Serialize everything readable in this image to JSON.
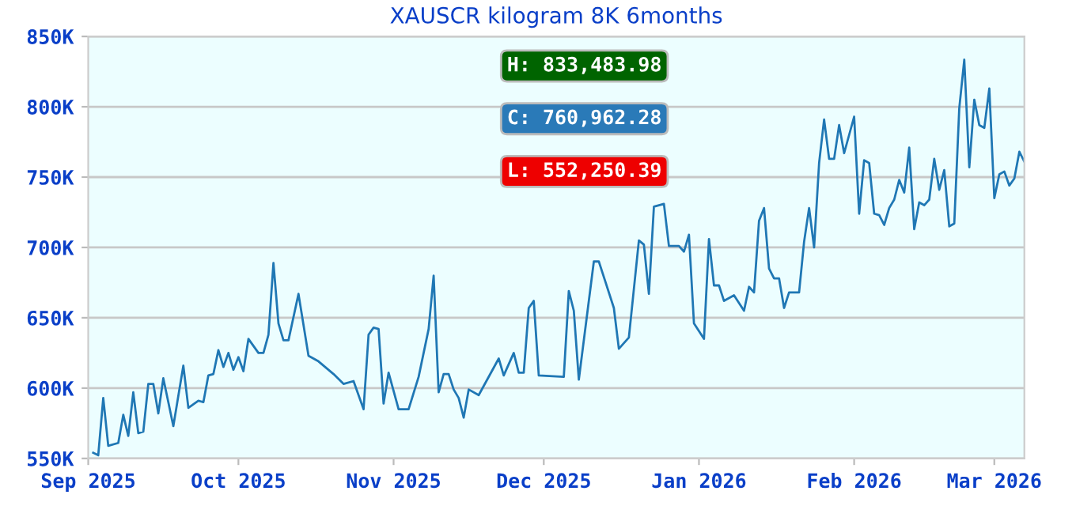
{
  "chart_data": {
    "type": "line",
    "title": "XAUSCR kilogram 8K 6months",
    "x": [
      "2025-09-02",
      "2025-09-03",
      "2025-09-04",
      "2025-09-05",
      "2025-09-07",
      "2025-09-08",
      "2025-09-09",
      "2025-09-10",
      "2025-09-11",
      "2025-09-12",
      "2025-09-13",
      "2025-09-14",
      "2025-09-15",
      "2025-09-16",
      "2025-09-18",
      "2025-09-20",
      "2025-09-21",
      "2025-09-23",
      "2025-09-24",
      "2025-09-25",
      "2025-09-26",
      "2025-09-27",
      "2025-09-28",
      "2025-09-29",
      "2025-09-30",
      "2025-10-01",
      "2025-10-02",
      "2025-10-03",
      "2025-10-05",
      "2025-10-06",
      "2025-10-07",
      "2025-10-08",
      "2025-10-09",
      "2025-10-10",
      "2025-10-11",
      "2025-10-13",
      "2025-10-15",
      "2025-10-17",
      "2025-10-20",
      "2025-10-22",
      "2025-10-24",
      "2025-10-26",
      "2025-10-27",
      "2025-10-28",
      "2025-10-29",
      "2025-10-30",
      "2025-10-31",
      "2025-11-02",
      "2025-11-04",
      "2025-11-06",
      "2025-11-08",
      "2025-11-09",
      "2025-11-10",
      "2025-11-11",
      "2025-11-12",
      "2025-11-13",
      "2025-11-14",
      "2025-11-15",
      "2025-11-16",
      "2025-11-18",
      "2025-11-22",
      "2025-11-23",
      "2025-11-25",
      "2025-11-26",
      "2025-11-27",
      "2025-11-28",
      "2025-11-29",
      "2025-11-30",
      "2025-12-05",
      "2025-12-06",
      "2025-12-07",
      "2025-12-08",
      "2025-12-11",
      "2025-12-12",
      "2025-12-15",
      "2025-12-16",
      "2025-12-18",
      "2025-12-20",
      "2025-12-21",
      "2025-12-22",
      "2025-12-23",
      "2025-12-25",
      "2025-12-26",
      "2025-12-28",
      "2025-12-29",
      "2025-12-30",
      "2025-12-31",
      "2026-01-02",
      "2026-01-03",
      "2026-01-04",
      "2026-01-05",
      "2026-01-06",
      "2026-01-08",
      "2026-01-10",
      "2026-01-11",
      "2026-01-12",
      "2026-01-13",
      "2026-01-14",
      "2026-01-15",
      "2026-01-16",
      "2026-01-17",
      "2026-01-18",
      "2026-01-19",
      "2026-01-21",
      "2026-01-22",
      "2026-01-23",
      "2026-01-24",
      "2026-01-25",
      "2026-01-26",
      "2026-01-27",
      "2026-01-28",
      "2026-01-29",
      "2026-01-30",
      "2026-02-01",
      "2026-02-02",
      "2026-02-03",
      "2026-02-04",
      "2026-02-05",
      "2026-02-06",
      "2026-02-07",
      "2026-02-08",
      "2026-02-09",
      "2026-02-10",
      "2026-02-11",
      "2026-02-12",
      "2026-02-13",
      "2026-02-14",
      "2026-02-15",
      "2026-02-16",
      "2026-02-17",
      "2026-02-18",
      "2026-02-19",
      "2026-02-20",
      "2026-02-21",
      "2026-02-22",
      "2026-02-23",
      "2026-02-24",
      "2026-02-25",
      "2026-02-26",
      "2026-02-27",
      "2026-02-28",
      "2026-03-01",
      "2026-03-02",
      "2026-03-03",
      "2026-03-04",
      "2026-03-05",
      "2026-03-06",
      "2026-03-07"
    ],
    "series": [
      {
        "color": "#1f77b4",
        "values": [
          554000,
          552250.39,
          593000,
          559000,
          561000,
          581000,
          566000,
          597000,
          568000,
          569000,
          603000,
          603000,
          582000,
          607000,
          573000,
          616000,
          586000,
          591000,
          590000,
          609000,
          610000,
          627000,
          615000,
          625000,
          613000,
          622000,
          612000,
          635000,
          625000,
          625000,
          638000,
          689000,
          646000,
          634000,
          634000,
          667000,
          623000,
          619000,
          610000,
          603000,
          605000,
          585000,
          638000,
          643000,
          642000,
          589000,
          611000,
          585000,
          585000,
          608000,
          642000,
          680000,
          597000,
          610000,
          610000,
          599000,
          593000,
          579000,
          599000,
          595000,
          621000,
          609000,
          625000,
          611000,
          611000,
          657000,
          662000,
          609000,
          608000,
          669000,
          655000,
          606000,
          690000,
          690000,
          657000,
          628000,
          636000,
          705000,
          702000,
          667000,
          729000,
          731000,
          701000,
          701000,
          697000,
          709000,
          646000,
          635000,
          706000,
          673000,
          673000,
          662000,
          666000,
          655000,
          672000,
          668000,
          719000,
          728000,
          685000,
          678000,
          678000,
          657000,
          668000,
          668000,
          704000,
          728000,
          700000,
          760000,
          791000,
          763000,
          763000,
          787000,
          767000,
          793000,
          724000,
          762000,
          760000,
          724000,
          723000,
          716000,
          728000,
          734000,
          748000,
          739000,
          771000,
          713000,
          732000,
          730000,
          734000,
          763000,
          741000,
          755000,
          715000,
          717000,
          799000,
          833483.98,
          757000,
          805000,
          787000,
          785000,
          813000,
          735000,
          752000,
          754000,
          744000,
          749000,
          768000,
          760962.28
        ]
      }
    ],
    "xlim": [
      "2025-09-01",
      "2026-03-07"
    ],
    "xticks": [
      {
        "value": "2025-09-01",
        "label": "Sep 2025"
      },
      {
        "value": "2025-10-01",
        "label": "Oct 2025"
      },
      {
        "value": "2025-11-01",
        "label": "Nov 2025"
      },
      {
        "value": "2025-12-01",
        "label": "Dec 2025"
      },
      {
        "value": "2026-01-01",
        "label": "Jan 2026"
      },
      {
        "value": "2026-02-01",
        "label": "Feb 2026"
      },
      {
        "value": "2026-03-01",
        "label": "Mar 2026"
      }
    ],
    "ylim": [
      550000,
      850000
    ],
    "yticks": [
      {
        "value": 550000,
        "label": "550K"
      },
      {
        "value": 600000,
        "label": "600K"
      },
      {
        "value": 650000,
        "label": "650K"
      },
      {
        "value": 700000,
        "label": "700K"
      },
      {
        "value": 750000,
        "label": "750K"
      },
      {
        "value": 800000,
        "label": "800K"
      },
      {
        "value": 850000,
        "label": "850K"
      }
    ],
    "grid": "y",
    "marker": "none",
    "line_style": "solid",
    "annotations": [
      "H: 833,483.98",
      "C: 760,962.28",
      "L: 552,250.39"
    ]
  }
}
